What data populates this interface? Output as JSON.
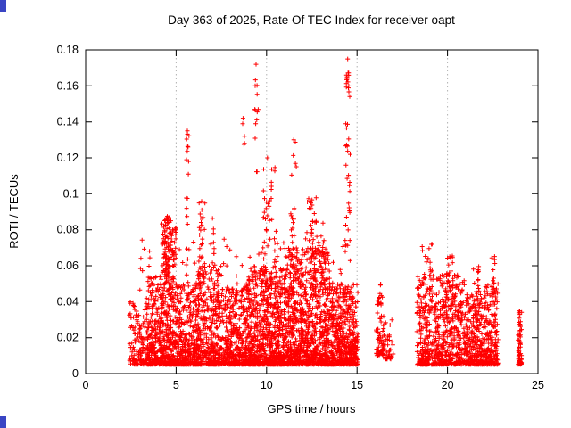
{
  "chart_data": {
    "type": "scatter",
    "title": "Day 363 of 2025, Rate Of TEC Index for receiver oapt",
    "xlabel": "GPS time / hours",
    "ylabel": "ROTI / TECUs",
    "xlim": [
      0,
      25
    ],
    "ylim": [
      0,
      0.18
    ],
    "xticks": [
      0,
      5,
      10,
      15,
      20,
      25
    ],
    "xtick_labels": [
      "0",
      "5",
      "10",
      "15",
      "20",
      "25"
    ],
    "yticks": [
      0,
      0.02,
      0.04,
      0.06,
      0.08,
      0.1,
      0.12,
      0.14,
      0.16,
      0.18
    ],
    "ytick_labels": [
      "0",
      "0.02",
      "0.04",
      "0.06",
      "0.08",
      "0.1",
      "0.12",
      "0.14",
      "0.16",
      "0.18"
    ],
    "grid": "x-dotted",
    "legend": "none",
    "marker": "plus",
    "marker_color": "#ff0000",
    "series_name": "ROTI",
    "clusters": [
      {
        "x": [
          2.4,
          3.4
        ],
        "y": [
          0.005,
          0.04
        ],
        "n": 140,
        "skew": true
      },
      {
        "x": [
          3.4,
          4.2
        ],
        "y": [
          0.005,
          0.055
        ],
        "n": 260,
        "skew": true
      },
      {
        "x": [
          4.2,
          5.0
        ],
        "y": [
          0.005,
          0.085
        ],
        "n": 380,
        "skew": true
      },
      {
        "x": [
          5.0,
          6.1
        ],
        "y": [
          0.005,
          0.05
        ],
        "n": 300,
        "skew": true
      },
      {
        "x": [
          6.1,
          7.5
        ],
        "y": [
          0.005,
          0.06
        ],
        "n": 420,
        "skew": true
      },
      {
        "x": [
          7.5,
          9.0
        ],
        "y": [
          0.005,
          0.05
        ],
        "n": 420,
        "skew": true
      },
      {
        "x": [
          9.0,
          11.0
        ],
        "y": [
          0.005,
          0.06
        ],
        "n": 750,
        "skew": true
      },
      {
        "x": [
          11.0,
          13.5
        ],
        "y": [
          0.005,
          0.07
        ],
        "n": 950,
        "skew": true
      },
      {
        "x": [
          13.5,
          15.05
        ],
        "y": [
          0.005,
          0.05
        ],
        "n": 520,
        "skew": true
      },
      {
        "x": [
          16.05,
          16.5
        ],
        "y": [
          0.01,
          0.045
        ],
        "n": 60,
        "skew": true
      },
      {
        "x": [
          16.5,
          17.0
        ],
        "y": [
          0.008,
          0.03
        ],
        "n": 40,
        "skew": true
      },
      {
        "x": [
          18.3,
          19.5
        ],
        "y": [
          0.005,
          0.055
        ],
        "n": 260,
        "skew": true
      },
      {
        "x": [
          19.5,
          21.0
        ],
        "y": [
          0.005,
          0.055
        ],
        "n": 360,
        "skew": true
      },
      {
        "x": [
          21.0,
          22.0
        ],
        "y": [
          0.005,
          0.045
        ],
        "n": 260,
        "skew": true
      },
      {
        "x": [
          22.0,
          22.8
        ],
        "y": [
          0.005,
          0.05
        ],
        "n": 200,
        "skew": true
      },
      {
        "x": [
          23.9,
          24.1
        ],
        "y": [
          0.005,
          0.035
        ],
        "n": 70,
        "skew": true
      },
      {
        "x": [
          3.0,
          15.0
        ],
        "y": [
          0.04,
          0.075
        ],
        "n": 90
      },
      {
        "x": [
          4.35,
          4.6
        ],
        "y": [
          0.05,
          0.088
        ],
        "n": 30
      },
      {
        "x": [
          5.55,
          5.75
        ],
        "y": [
          0.05,
          0.135
        ],
        "n": 18
      },
      {
        "x": [
          6.25,
          6.65
        ],
        "y": [
          0.05,
          0.097
        ],
        "n": 30
      },
      {
        "x": [
          7.0,
          7.15
        ],
        "y": [
          0.05,
          0.09
        ],
        "n": 10
      },
      {
        "x": [
          8.65,
          8.78
        ],
        "y": [
          0.1,
          0.143
        ],
        "n": 4
      },
      {
        "x": [
          9.3,
          9.55
        ],
        "y": [
          0.09,
          0.168
        ],
        "n": 12
      },
      {
        "x": [
          9.8,
          10.3
        ],
        "y": [
          0.07,
          0.122
        ],
        "n": 24
      },
      {
        "x": [
          10.4,
          10.6
        ],
        "y": [
          0.06,
          0.115
        ],
        "n": 10
      },
      {
        "x": [
          11.3,
          11.65
        ],
        "y": [
          0.07,
          0.131
        ],
        "n": 18
      },
      {
        "x": [
          12.2,
          12.8
        ],
        "y": [
          0.06,
          0.098
        ],
        "n": 34
      },
      {
        "x": [
          13.0,
          13.2
        ],
        "y": [
          0.05,
          0.088
        ],
        "n": 12
      },
      {
        "x": [
          14.35,
          14.62
        ],
        "y": [
          0.07,
          0.155
        ],
        "n": 26
      },
      {
        "x": [
          14.4,
          14.58
        ],
        "y": [
          0.155,
          0.172
        ],
        "n": 12
      },
      {
        "x": [
          16.1,
          16.35
        ],
        "y": [
          0.03,
          0.052
        ],
        "n": 14
      },
      {
        "x": [
          18.6,
          19.2
        ],
        "y": [
          0.035,
          0.072
        ],
        "n": 28
      },
      {
        "x": [
          19.9,
          20.3
        ],
        "y": [
          0.04,
          0.066
        ],
        "n": 24
      },
      {
        "x": [
          21.4,
          21.75
        ],
        "y": [
          0.03,
          0.06
        ],
        "n": 20
      },
      {
        "x": [
          22.4,
          22.65
        ],
        "y": [
          0.04,
          0.066
        ],
        "n": 14
      }
    ],
    "highlight_points": [
      [
        9.42,
        0.172
      ],
      [
        14.48,
        0.175
      ],
      [
        8.7,
        0.142
      ],
      [
        5.62,
        0.135
      ],
      [
        5.66,
        0.126
      ],
      [
        9.35,
        0.147
      ],
      [
        11.5,
        0.13
      ],
      [
        10.05,
        0.12
      ],
      [
        12.45,
        0.095
      ],
      [
        14.45,
        0.165
      ]
    ]
  },
  "colors": {
    "marker": "#ff0000",
    "axis": "#000000",
    "grid": "#b0b0b0",
    "accent": "#3a45c4",
    "background": "#ffffff"
  }
}
